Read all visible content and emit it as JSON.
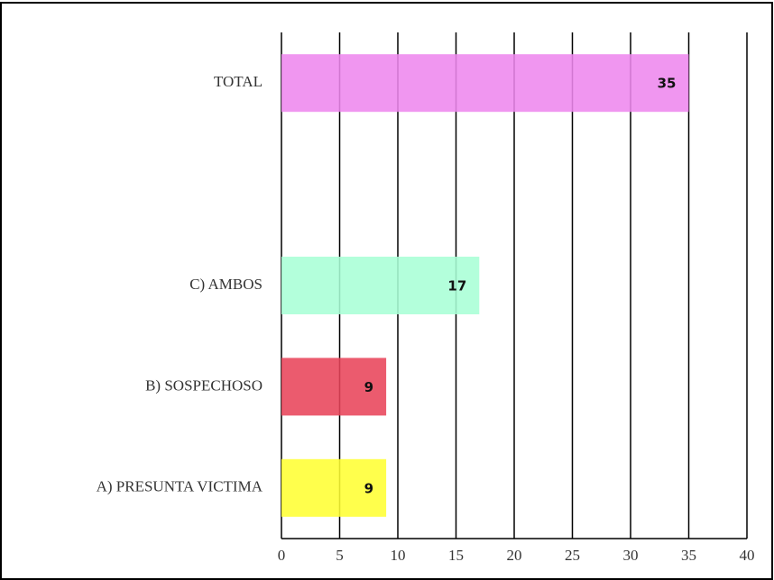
{
  "chart_data": {
    "type": "barh",
    "categories": [
      "A) PRESUNTA VICTIMA",
      "B) SOSPECHOSO",
      "C) AMBOS",
      null,
      "TOTAL"
    ],
    "values": [
      9,
      9,
      17,
      null,
      35
    ],
    "colors": [
      "#ffff33",
      "#e8445a",
      "#a8ffd6",
      null,
      "#ee88ee"
    ],
    "xlim": [
      0,
      40
    ],
    "xticks": [
      0,
      5,
      10,
      15,
      20,
      25,
      30,
      35,
      40
    ],
    "grid": true
  }
}
